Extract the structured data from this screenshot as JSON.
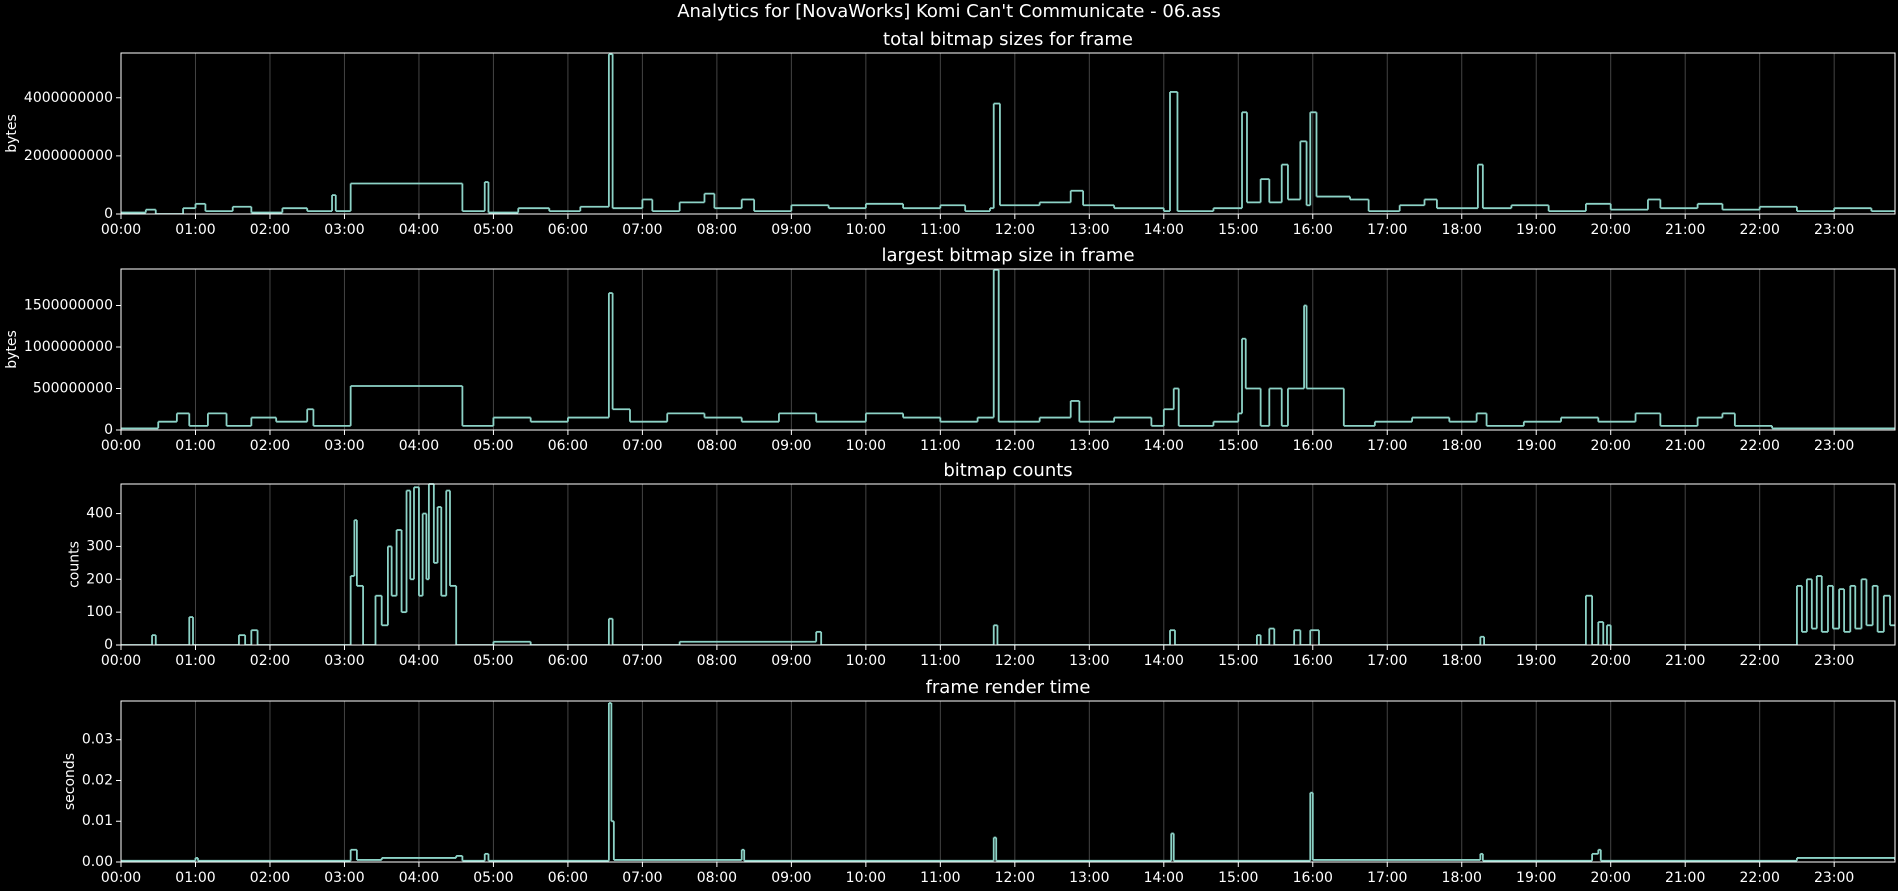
{
  "title": "Analytics for [NovaWorks] Komi Can't Communicate - 06.ass",
  "chart_data": [
    {
      "type": "line",
      "step": "post",
      "title": "total bitmap sizes for frame",
      "ylabel": "bytes",
      "color": "#8dd3c7",
      "grid": "x",
      "xlim": [
        0,
        1429
      ],
      "ylim": [
        0,
        5540000000
      ],
      "yticks": [
        0,
        2000000000,
        4000000000
      ],
      "xticks": [
        {
          "value": 0,
          "label": "00:00"
        },
        {
          "value": 60,
          "label": "01:00"
        },
        {
          "value": 120,
          "label": "02:00"
        },
        {
          "value": 180,
          "label": "03:00"
        },
        {
          "value": 240,
          "label": "04:00"
        },
        {
          "value": 300,
          "label": "05:00"
        },
        {
          "value": 360,
          "label": "06:00"
        },
        {
          "value": 420,
          "label": "07:00"
        },
        {
          "value": 480,
          "label": "08:00"
        },
        {
          "value": 540,
          "label": "09:00"
        },
        {
          "value": 600,
          "label": "10:00"
        },
        {
          "value": 660,
          "label": "11:00"
        },
        {
          "value": 720,
          "label": "12:00"
        },
        {
          "value": 780,
          "label": "13:00"
        },
        {
          "value": 840,
          "label": "14:00"
        },
        {
          "value": 900,
          "label": "15:00"
        },
        {
          "value": 960,
          "label": "16:00"
        },
        {
          "value": 1020,
          "label": "17:00"
        },
        {
          "value": 1080,
          "label": "18:00"
        },
        {
          "value": 1140,
          "label": "19:00"
        },
        {
          "value": 1200,
          "label": "20:00"
        },
        {
          "value": 1260,
          "label": "21:00"
        },
        {
          "value": 1320,
          "label": "22:00"
        },
        {
          "value": 1380,
          "label": "23:00"
        }
      ],
      "x": [
        0,
        20,
        28,
        50,
        60,
        68,
        90,
        105,
        130,
        150,
        170,
        173,
        185,
        275,
        293,
        296,
        320,
        345,
        370,
        393,
        396,
        420,
        428,
        450,
        470,
        478,
        500,
        510,
        540,
        570,
        600,
        630,
        660,
        680,
        700,
        703,
        708,
        740,
        765,
        775,
        800,
        840,
        845,
        851,
        880,
        903,
        907,
        918,
        925,
        935,
        940,
        950,
        955,
        958,
        963,
        990,
        1005,
        1030,
        1050,
        1060,
        1093,
        1097,
        1120,
        1150,
        1180,
        1200,
        1230,
        1240,
        1270,
        1290,
        1320,
        1350,
        1380,
        1410,
        1429
      ],
      "values": [
        50000000.0,
        150000000.0,
        0,
        200000000.0,
        350000000.0,
        100000000.0,
        250000000.0,
        50000000.0,
        200000000.0,
        100000000.0,
        650000000.0,
        100000000.0,
        1050000000.0,
        100000000.0,
        1100000000.0,
        50000000.0,
        200000000.0,
        100000000.0,
        250000000.0,
        5500000000.0,
        200000000.0,
        500000000.0,
        100000000.0,
        400000000.0,
        700000000.0,
        200000000.0,
        500000000.0,
        100000000.0,
        300000000.0,
        200000000.0,
        350000000.0,
        200000000.0,
        300000000.0,
        100000000.0,
        200000000.0,
        3800000000.0,
        300000000.0,
        400000000.0,
        800000000.0,
        300000000.0,
        200000000.0,
        100000000.0,
        4200000000.0,
        100000000.0,
        200000000.0,
        3500000000.0,
        400000000.0,
        1200000000.0,
        400000000.0,
        1700000000.0,
        500000000.0,
        2500000000.0,
        300000000.0,
        3500000000.0,
        600000000.0,
        500000000.0,
        100000000.0,
        300000000.0,
        500000000.0,
        200000000.0,
        1700000000.0,
        200000000.0,
        300000000.0,
        100000000.0,
        350000000.0,
        150000000.0,
        500000000.0,
        200000000.0,
        350000000.0,
        150000000.0,
        250000000.0,
        100000000.0,
        200000000.0,
        100000000.0,
        100000000.0
      ]
    },
    {
      "type": "line",
      "step": "post",
      "title": "largest bitmap size in frame",
      "ylabel": "bytes",
      "color": "#8dd3c7",
      "grid": "x",
      "xlim": [
        0,
        1429
      ],
      "ylim": [
        0,
        1940000000
      ],
      "yticks": [
        0,
        500000000,
        1000000000,
        1500000000
      ],
      "xticks": [
        {
          "value": 0,
          "label": "00:00"
        },
        {
          "value": 60,
          "label": "01:00"
        },
        {
          "value": 120,
          "label": "02:00"
        },
        {
          "value": 180,
          "label": "03:00"
        },
        {
          "value": 240,
          "label": "04:00"
        },
        {
          "value": 300,
          "label": "05:00"
        },
        {
          "value": 360,
          "label": "06:00"
        },
        {
          "value": 420,
          "label": "07:00"
        },
        {
          "value": 480,
          "label": "08:00"
        },
        {
          "value": 540,
          "label": "09:00"
        },
        {
          "value": 600,
          "label": "10:00"
        },
        {
          "value": 660,
          "label": "11:00"
        },
        {
          "value": 720,
          "label": "12:00"
        },
        {
          "value": 780,
          "label": "13:00"
        },
        {
          "value": 840,
          "label": "14:00"
        },
        {
          "value": 900,
          "label": "15:00"
        },
        {
          "value": 960,
          "label": "16:00"
        },
        {
          "value": 1020,
          "label": "17:00"
        },
        {
          "value": 1080,
          "label": "18:00"
        },
        {
          "value": 1140,
          "label": "19:00"
        },
        {
          "value": 1200,
          "label": "20:00"
        },
        {
          "value": 1260,
          "label": "21:00"
        },
        {
          "value": 1320,
          "label": "22:00"
        },
        {
          "value": 1380,
          "label": "23:00"
        }
      ],
      "x": [
        0,
        30,
        45,
        55,
        70,
        85,
        105,
        125,
        150,
        155,
        185,
        275,
        300,
        330,
        360,
        393,
        396,
        410,
        440,
        470,
        500,
        530,
        560,
        600,
        630,
        660,
        690,
        703,
        707,
        740,
        765,
        772,
        800,
        830,
        840,
        848,
        852,
        880,
        900,
        903,
        906,
        918,
        925,
        935,
        940,
        953,
        955,
        985,
        1010,
        1040,
        1070,
        1092,
        1100,
        1130,
        1160,
        1190,
        1220,
        1240,
        1270,
        1290,
        1300,
        1330,
        1429
      ],
      "values": [
        20000000.0,
        100000000.0,
        200000000.0,
        50000000.0,
        200000000.0,
        50000000.0,
        150000000.0,
        100000000.0,
        250000000.0,
        50000000.0,
        530000000.0,
        50000000.0,
        150000000.0,
        100000000.0,
        150000000.0,
        1650000000.0,
        250000000.0,
        100000000.0,
        200000000.0,
        150000000.0,
        100000000.0,
        200000000.0,
        100000000.0,
        200000000.0,
        150000000.0,
        100000000.0,
        150000000.0,
        1930000000.0,
        100000000.0,
        150000000.0,
        350000000.0,
        100000000.0,
        150000000.0,
        50000000.0,
        250000000.0,
        500000000.0,
        50000000.0,
        100000000.0,
        200000000.0,
        1100000000.0,
        500000000.0,
        50000000.0,
        500000000.0,
        50000000.0,
        500000000.0,
        1500000000.0,
        500000000.0,
        50000000.0,
        100000000.0,
        150000000.0,
        100000000.0,
        200000000.0,
        50000000.0,
        100000000.0,
        150000000.0,
        100000000.0,
        200000000.0,
        50000000.0,
        150000000.0,
        200000000.0,
        50000000.0,
        20000000.0,
        20000000.0
      ]
    },
    {
      "type": "line",
      "step": "post",
      "title": "bitmap counts",
      "ylabel": "counts",
      "color": "#8dd3c7",
      "grid": "x",
      "xlim": [
        0,
        1429
      ],
      "ylim": [
        0,
        490
      ],
      "yticks": [
        0,
        100,
        200,
        300,
        400
      ],
      "xticks": [
        {
          "value": 0,
          "label": "00:00"
        },
        {
          "value": 60,
          "label": "01:00"
        },
        {
          "value": 120,
          "label": "02:00"
        },
        {
          "value": 180,
          "label": "03:00"
        },
        {
          "value": 240,
          "label": "04:00"
        },
        {
          "value": 300,
          "label": "05:00"
        },
        {
          "value": 360,
          "label": "06:00"
        },
        {
          "value": 420,
          "label": "07:00"
        },
        {
          "value": 480,
          "label": "08:00"
        },
        {
          "value": 540,
          "label": "09:00"
        },
        {
          "value": 600,
          "label": "10:00"
        },
        {
          "value": 660,
          "label": "11:00"
        },
        {
          "value": 720,
          "label": "12:00"
        },
        {
          "value": 780,
          "label": "13:00"
        },
        {
          "value": 840,
          "label": "14:00"
        },
        {
          "value": 900,
          "label": "15:00"
        },
        {
          "value": 960,
          "label": "16:00"
        },
        {
          "value": 1020,
          "label": "17:00"
        },
        {
          "value": 1080,
          "label": "18:00"
        },
        {
          "value": 1140,
          "label": "19:00"
        },
        {
          "value": 1200,
          "label": "20:00"
        },
        {
          "value": 1260,
          "label": "21:00"
        },
        {
          "value": 1320,
          "label": "22:00"
        },
        {
          "value": 1380,
          "label": "23:00"
        }
      ],
      "x": [
        0,
        25,
        28,
        55,
        58,
        95,
        100,
        105,
        110,
        185,
        188,
        190,
        195,
        205,
        210,
        215,
        218,
        222,
        226,
        230,
        233,
        236,
        240,
        243,
        246,
        248,
        252,
        255,
        258,
        262,
        265,
        270,
        300,
        330,
        393,
        396,
        450,
        560,
        564,
        703,
        706,
        845,
        849,
        915,
        918,
        925,
        929,
        945,
        950,
        958,
        965,
        1095,
        1098,
        1180,
        1185,
        1190,
        1194,
        1197,
        1200,
        1350,
        1354,
        1358,
        1362,
        1366,
        1370,
        1375,
        1379,
        1384,
        1388,
        1393,
        1397,
        1402,
        1406,
        1411,
        1415,
        1420,
        1425,
        1429
      ],
      "values": [
        0,
        30,
        0,
        85,
        0,
        30,
        0,
        45,
        0,
        210,
        380,
        180,
        0,
        150,
        60,
        300,
        150,
        350,
        100,
        470,
        200,
        480,
        150,
        400,
        200,
        490,
        250,
        420,
        150,
        470,
        180,
        0,
        10,
        0,
        80,
        0,
        10,
        40,
        0,
        60,
        0,
        45,
        0,
        30,
        0,
        50,
        0,
        45,
        0,
        45,
        0,
        25,
        0,
        150,
        0,
        70,
        0,
        60,
        0,
        180,
        40,
        200,
        50,
        210,
        40,
        180,
        50,
        170,
        40,
        180,
        50,
        200,
        60,
        180,
        40,
        150,
        60,
        60
      ]
    },
    {
      "type": "line",
      "step": "post",
      "title": "frame render time",
      "ylabel": "seconds",
      "color": "#8dd3c7",
      "grid": "x",
      "xlim": [
        0,
        1429
      ],
      "ylim": [
        0,
        0.0395
      ],
      "yticks": [
        {
          "value": 0,
          "label": "0.00"
        },
        0.01,
        0.02,
        0.03
      ],
      "xticks": [
        {
          "value": 0,
          "label": "00:00"
        },
        {
          "value": 60,
          "label": "01:00"
        },
        {
          "value": 120,
          "label": "02:00"
        },
        {
          "value": 180,
          "label": "03:00"
        },
        {
          "value": 240,
          "label": "04:00"
        },
        {
          "value": 300,
          "label": "05:00"
        },
        {
          "value": 360,
          "label": "06:00"
        },
        {
          "value": 420,
          "label": "07:00"
        },
        {
          "value": 480,
          "label": "08:00"
        },
        {
          "value": 540,
          "label": "09:00"
        },
        {
          "value": 600,
          "label": "10:00"
        },
        {
          "value": 660,
          "label": "11:00"
        },
        {
          "value": 720,
          "label": "12:00"
        },
        {
          "value": 780,
          "label": "13:00"
        },
        {
          "value": 840,
          "label": "14:00"
        },
        {
          "value": 900,
          "label": "15:00"
        },
        {
          "value": 960,
          "label": "16:00"
        },
        {
          "value": 1020,
          "label": "17:00"
        },
        {
          "value": 1080,
          "label": "18:00"
        },
        {
          "value": 1140,
          "label": "19:00"
        },
        {
          "value": 1200,
          "label": "20:00"
        },
        {
          "value": 1260,
          "label": "21:00"
        },
        {
          "value": 1320,
          "label": "22:00"
        },
        {
          "value": 1380,
          "label": "23:00"
        }
      ],
      "x": [
        0,
        60,
        62,
        185,
        190,
        210,
        270,
        275,
        293,
        296,
        393,
        395,
        397,
        500,
        502,
        703,
        705,
        846,
        848,
        958,
        960,
        1095,
        1097,
        1185,
        1190,
        1192,
        1350,
        1429
      ],
      "values": [
        0.0003,
        0.001,
        0.0003,
        0.003,
        0.0005,
        0.001,
        0.0015,
        0.0003,
        0.002,
        0.0003,
        0.039,
        0.01,
        0.0005,
        0.003,
        0.0003,
        0.006,
        0.0003,
        0.007,
        0.0003,
        0.017,
        0.0005,
        0.002,
        0.0003,
        0.002,
        0.003,
        0.0003,
        0.001,
        0.0005
      ]
    }
  ]
}
